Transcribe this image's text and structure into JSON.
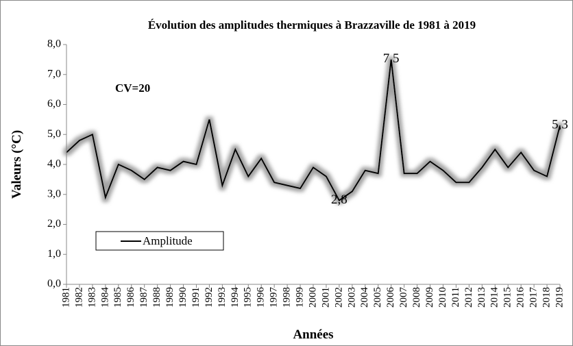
{
  "chart_data": {
    "type": "line",
    "title": "Évolution des amplitudes thermiques à Brazzaville de 1981 à 2019",
    "x_label": "Années",
    "y_label": "Valeurs (°C)",
    "annotation": "CV=20",
    "categories": [
      "1981",
      "1982",
      "1983",
      "1984",
      "1985",
      "1986",
      "1987",
      "1988",
      "1989",
      "1990",
      "1991",
      "1992",
      "1993",
      "1994",
      "1995",
      "1996",
      "1997",
      "1998",
      "1999",
      "2000",
      "2001",
      "2002",
      "2003",
      "2004",
      "2005",
      "2006",
      "2007",
      "2008",
      "2009",
      "2010",
      "2011",
      "2012",
      "2013",
      "2014",
      "2015",
      "2016",
      "2017",
      "2018",
      "2019"
    ],
    "series": [
      {
        "name": "Amplitude",
        "color": "#000000",
        "values": [
          4.4,
          4.8,
          5.0,
          2.9,
          4.0,
          3.8,
          3.5,
          3.9,
          3.8,
          4.1,
          4.0,
          5.5,
          3.3,
          4.5,
          3.6,
          4.2,
          3.4,
          3.3,
          3.2,
          3.9,
          3.6,
          2.8,
          3.1,
          3.8,
          3.7,
          7.5,
          3.7,
          3.7,
          4.1,
          3.8,
          3.4,
          3.4,
          3.9,
          4.5,
          3.9,
          4.4,
          3.8,
          3.6,
          5.3
        ],
        "value_labels": [
          null,
          null,
          null,
          null,
          null,
          null,
          null,
          null,
          null,
          null,
          null,
          null,
          null,
          null,
          null,
          null,
          null,
          null,
          null,
          null,
          null,
          "2,8",
          null,
          null,
          null,
          "7,5",
          null,
          null,
          null,
          null,
          null,
          null,
          null,
          null,
          null,
          null,
          null,
          null,
          "5,3"
        ]
      }
    ],
    "ylim": [
      0,
      8
    ],
    "yticks": [
      {
        "value": 0,
        "label": "0,0"
      },
      {
        "value": 1,
        "label": "1,0"
      },
      {
        "value": 2,
        "label": "2,0"
      },
      {
        "value": 3,
        "label": "3,0"
      },
      {
        "value": 4,
        "label": "4,0"
      },
      {
        "value": 5,
        "label": "5,0"
      },
      {
        "value": 6,
        "label": "6,0"
      },
      {
        "value": 7,
        "label": "7,0"
      },
      {
        "value": 8,
        "label": "8,0"
      }
    ],
    "grid": false
  }
}
